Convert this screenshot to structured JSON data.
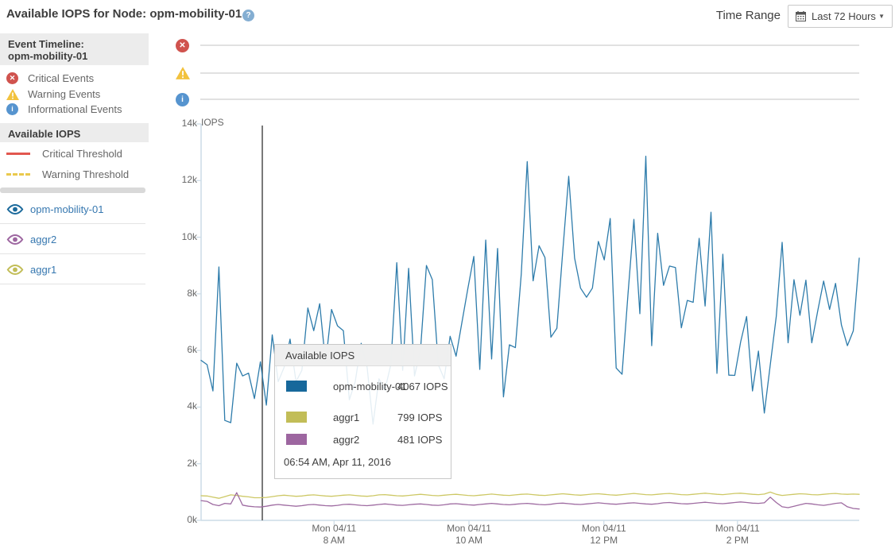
{
  "header": {
    "title": "Available IOPS for Node: opm-mobility-01",
    "help_icon_glyph": "?",
    "time_range_label": "Time Range",
    "time_range_value": "Last 72 Hours"
  },
  "sidebar": {
    "event_timeline_title_line1": "Event Timeline:",
    "event_timeline_title_line2": "opm-mobility-01",
    "event_legend": [
      {
        "icon": "critical-event-icon",
        "label": "Critical Events",
        "color": "#d0534e"
      },
      {
        "icon": "warning-event-icon",
        "label": "Warning Events",
        "color": "#f2c23e"
      },
      {
        "icon": "informational-event-icon",
        "label": "Informational Events",
        "color": "#5694cf"
      }
    ],
    "available_iops_title": "Available IOPS",
    "threshold_legend": [
      {
        "label": "Critical Threshold",
        "style": "solid",
        "color": "#e2574f"
      },
      {
        "label": "Warning Threshold",
        "style": "dashed",
        "color": "#eac94d"
      }
    ],
    "series_links": [
      {
        "label": "opm-mobility-01",
        "eye_color": "#1c6a9c"
      },
      {
        "label": "aggr2",
        "eye_color": "#9d66a0"
      },
      {
        "label": "aggr1",
        "eye_color": "#c2bd57"
      }
    ]
  },
  "tooltip": {
    "title": "Available IOPS",
    "rows": [
      {
        "name": "opm-mobility-01",
        "value": "4067 IOPS",
        "color": "#17689b"
      },
      {
        "name": "aggr1",
        "value": "799 IOPS",
        "color": "#c2bd57"
      },
      {
        "name": "aggr2",
        "value": "481 IOPS",
        "color": "#9d66a0"
      }
    ],
    "timestamp": "06:54 AM, Apr 11, 2016"
  },
  "chart_data": {
    "type": "line",
    "title": "Available IOPS for Node: opm-mobility-01",
    "ylabel": "IOPS",
    "ylim": [
      0,
      14000
    ],
    "grid": false,
    "ytick_labels": [
      "14k",
      "12k",
      "10k",
      "8k",
      "6k",
      "4k",
      "2k",
      "0k"
    ],
    "xticks": [
      {
        "line1": "Mon 04/11",
        "line2": "8 AM",
        "fraction": 0.202
      },
      {
        "line1": "Mon 04/11",
        "line2": "10 AM",
        "fraction": 0.407
      },
      {
        "line1": "Mon 04/11",
        "line2": "12 PM",
        "fraction": 0.612
      },
      {
        "line1": "Mon 04/11",
        "line2": "2 PM",
        "fraction": 0.815
      }
    ],
    "cursor": {
      "timestamp": "06:54 AM, Apr 11, 2016",
      "x_fraction": 0.093,
      "values": {
        "opm-mobility-01": 4067,
        "aggr1": 799,
        "aggr2": 481
      }
    },
    "series": [
      {
        "name": "opm-mobility-01",
        "color": "#2e7cab",
        "values": [
          5650,
          5500,
          4570,
          8950,
          3530,
          3450,
          5550,
          5100,
          5200,
          4300,
          5600,
          4067,
          6550,
          4900,
          5400,
          6400,
          4900,
          5300,
          7500,
          6700,
          7650,
          5550,
          7450,
          6870,
          6700,
          4260,
          4900,
          6250,
          5400,
          3400,
          5000,
          4600,
          5500,
          9100,
          5300,
          8900,
          5100,
          6000,
          9000,
          8500,
          5500,
          5000,
          6500,
          5800,
          7000,
          8200,
          9320,
          5330,
          9900,
          5700,
          9600,
          4360,
          6200,
          6100,
          8700,
          12670,
          8460,
          9700,
          9280,
          6470,
          6780,
          9500,
          12150,
          9260,
          8200,
          7880,
          8200,
          9850,
          9200,
          10660,
          5380,
          5160,
          8000,
          10630,
          7300,
          12860,
          6170,
          10140,
          8300,
          8980,
          8930,
          6800,
          7770,
          7700,
          9960,
          7570,
          10880,
          5190,
          9400,
          5130,
          5120,
          6300,
          7200,
          4570,
          5980,
          3790,
          5500,
          7200,
          9820,
          6270,
          8500,
          7240,
          8480,
          6270,
          7400,
          8450,
          7450,
          8370,
          6900,
          6170,
          6690,
          9260
        ]
      },
      {
        "name": "aggr1",
        "color": "#cdc865",
        "values": [
          870,
          860,
          820,
          780,
          840,
          900,
          880,
          850,
          830,
          800,
          799,
          810,
          840,
          870,
          890,
          870,
          850,
          860,
          890,
          900,
          880,
          860,
          850,
          870,
          890,
          900,
          880,
          860,
          850,
          870,
          900,
          910,
          890,
          870,
          860,
          880,
          900,
          920,
          900,
          880,
          870,
          890,
          910,
          920,
          900,
          880,
          870,
          890,
          910,
          930,
          910,
          890,
          880,
          900,
          920,
          930,
          910,
          890,
          880,
          900,
          920,
          940,
          920,
          900,
          890,
          910,
          930,
          940,
          920,
          900,
          890,
          910,
          930,
          950,
          930,
          910,
          900,
          920,
          940,
          950,
          930,
          910,
          900,
          920,
          940,
          960,
          940,
          920,
          910,
          930,
          950,
          960,
          940,
          920,
          910,
          930,
          1000,
          920,
          880,
          900,
          920,
          940,
          930,
          910,
          900,
          920,
          940,
          950,
          930,
          920,
          930,
          920
        ]
      },
      {
        "name": "aggr2",
        "color": "#9e6ba1",
        "values": [
          700,
          670,
          560,
          520,
          600,
          580,
          980,
          540,
          500,
          481,
          470,
          500,
          540,
          560,
          540,
          520,
          500,
          520,
          550,
          560,
          540,
          520,
          510,
          530,
          560,
          570,
          550,
          530,
          520,
          540,
          560,
          580,
          560,
          540,
          530,
          550,
          570,
          580,
          560,
          540,
          530,
          550,
          580,
          590,
          570,
          550,
          540,
          560,
          580,
          600,
          580,
          560,
          550,
          570,
          590,
          600,
          580,
          560,
          550,
          570,
          600,
          610,
          590,
          570,
          560,
          580,
          600,
          620,
          600,
          580,
          570,
          590,
          610,
          620,
          600,
          580,
          570,
          590,
          620,
          630,
          610,
          590,
          580,
          600,
          620,
          640,
          620,
          600,
          590,
          610,
          630,
          650,
          630,
          610,
          600,
          620,
          820,
          630,
          480,
          450,
          500,
          550,
          600,
          580,
          550,
          530,
          560,
          600,
          620,
          480,
          420,
          400
        ]
      }
    ]
  }
}
